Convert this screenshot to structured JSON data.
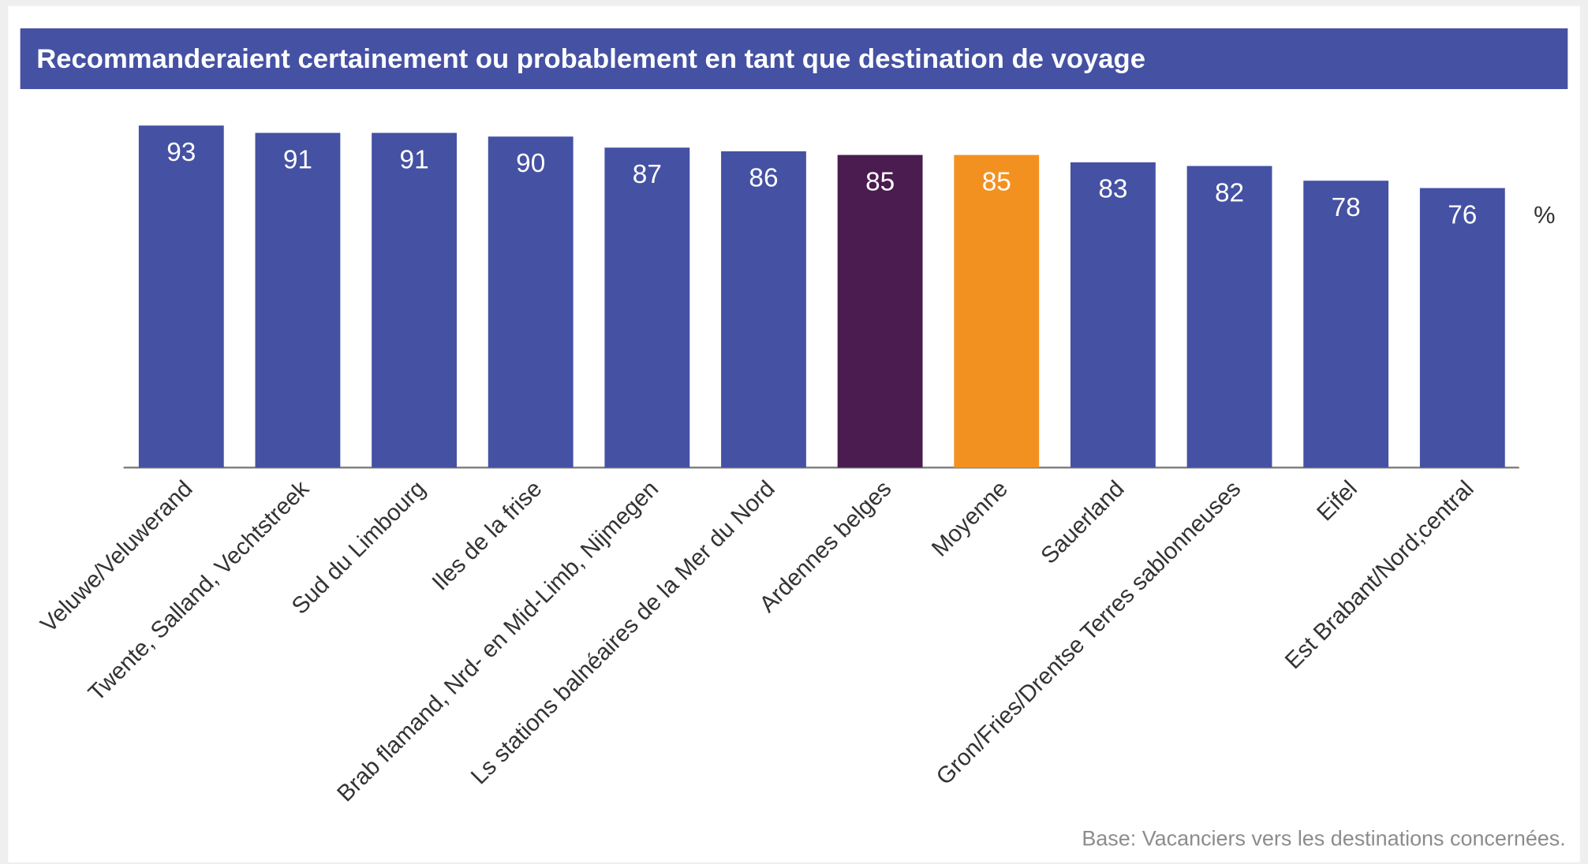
{
  "chart_data": {
    "type": "bar",
    "title": "Recommanderaient certainement ou probablement en tant que destination de voyage",
    "categories": [
      "Veluwe/Veluwerand",
      "Twente, Salland, Vechtstreek",
      "Sud du Limbourg",
      "Iles de la frise",
      "Brab flamand, Nrd- en Mid-Limb, Nijmegen",
      "Ls stations balnéaires de la Mer du Nord",
      "Ardennes belges",
      "Moyenne",
      "Sauerland",
      "Gron/Fries/Drentse Terres sablonneuses",
      "Eifel",
      "Est Brabant/Nord;central"
    ],
    "values": [
      93,
      91,
      91,
      90,
      87,
      86,
      85,
      85,
      83,
      82,
      78,
      76
    ],
    "colors": [
      "#4551a3",
      "#4551a3",
      "#4551a3",
      "#4551a3",
      "#4551a3",
      "#4551a3",
      "#4a1c4f",
      "#f39120",
      "#4551a3",
      "#4551a3",
      "#4551a3",
      "#4551a3"
    ],
    "ylim": [
      0,
      100
    ],
    "unit_label": "%",
    "note": "Base: Vacanciers vers les destinations concernées."
  }
}
